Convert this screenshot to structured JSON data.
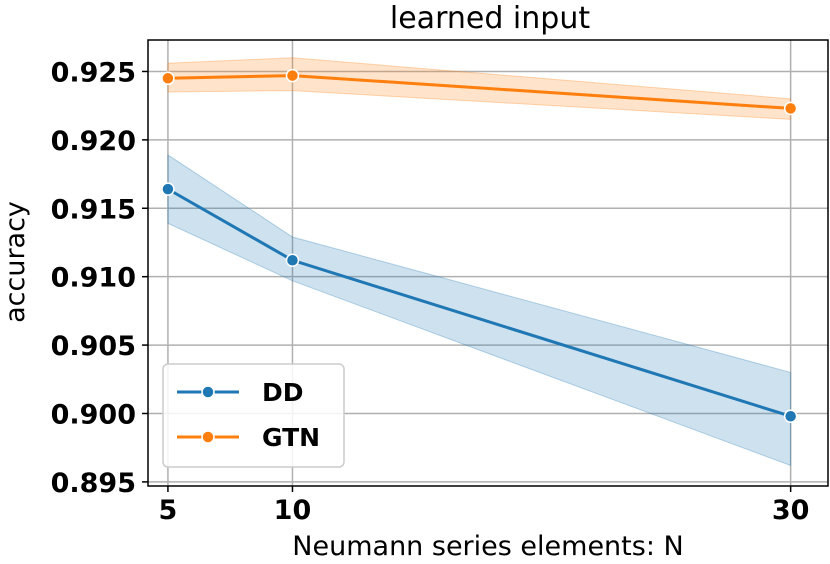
{
  "chart_data": {
    "type": "line",
    "title": "learned input",
    "xlabel": "Neumann series elements: N",
    "ylabel": "accuracy",
    "x": [
      5,
      10,
      30
    ],
    "xlim": [
      4.2,
      31.5
    ],
    "ylim": [
      0.8947,
      0.9273
    ],
    "xticks": [
      5,
      10,
      30
    ],
    "xtick_labels": [
      "5",
      "10",
      "30"
    ],
    "yticks": [
      0.895,
      0.9,
      0.905,
      0.91,
      0.915,
      0.92,
      0.925
    ],
    "ytick_labels": [
      "0.895",
      "0.900",
      "0.905",
      "0.910",
      "0.915",
      "0.920",
      "0.925"
    ],
    "grid": true,
    "legend_position": "lower-left",
    "series": [
      {
        "name": "DD",
        "color": "#1f77b4",
        "values": [
          0.9164,
          0.9112,
          0.8998
        ],
        "ci_lower": [
          0.9139,
          0.9097,
          0.8962
        ],
        "ci_upper": [
          0.9189,
          0.9129,
          0.903
        ]
      },
      {
        "name": "GTN",
        "color": "#ff7f0e",
        "values": [
          0.9245,
          0.9247,
          0.9223
        ],
        "ci_lower": [
          0.9235,
          0.9236,
          0.9215
        ],
        "ci_upper": [
          0.9256,
          0.926,
          0.923
        ]
      }
    ]
  }
}
